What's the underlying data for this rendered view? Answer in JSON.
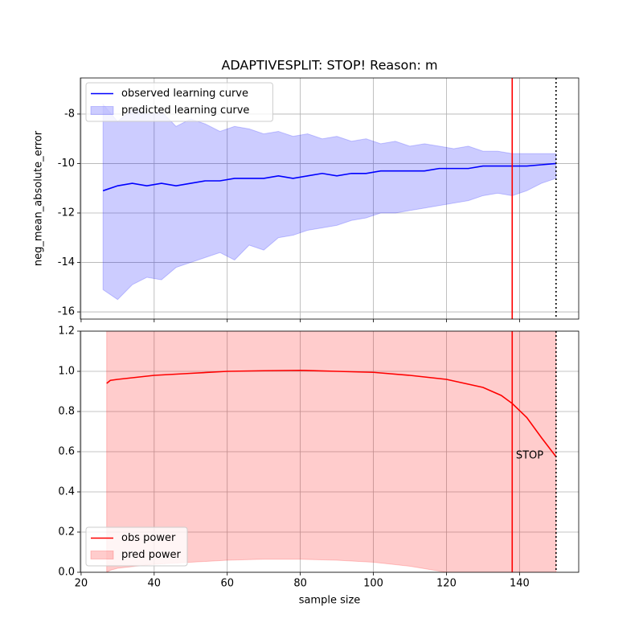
{
  "chart_data": [
    {
      "type": "line",
      "title": "ADAPTIVESPLIT: STOP!  Reason: m",
      "ylabel": "neg_mean_absolute_error",
      "x": [
        26,
        30,
        34,
        38,
        42,
        46,
        50,
        54,
        58,
        62,
        66,
        70,
        74,
        78,
        82,
        86,
        90,
        94,
        98,
        102,
        106,
        110,
        114,
        118,
        122,
        126,
        130,
        134,
        138,
        142,
        146,
        150
      ],
      "series": [
        {
          "name": "observed learning curve",
          "color": "#0000ff",
          "values": [
            -11.1,
            -10.9,
            -10.8,
            -10.9,
            -10.8,
            -10.9,
            -10.8,
            -10.7,
            -10.7,
            -10.6,
            -10.6,
            -10.6,
            -10.5,
            -10.6,
            -10.5,
            -10.4,
            -10.5,
            -10.4,
            -10.4,
            -10.3,
            -10.3,
            -10.3,
            -10.3,
            -10.2,
            -10.2,
            -10.2,
            -10.1,
            -10.1,
            -10.1,
            -10.1,
            -10.05,
            -10.0
          ]
        },
        {
          "name": "predicted learning curve",
          "kind": "band",
          "color": "#0000ff",
          "upper": [
            -7.6,
            -8.3,
            -7.8,
            -8.0,
            -7.9,
            -8.5,
            -8.2,
            -8.4,
            -8.7,
            -8.5,
            -8.6,
            -8.8,
            -8.7,
            -8.9,
            -8.8,
            -9.0,
            -8.9,
            -9.1,
            -9.0,
            -9.2,
            -9.1,
            -9.3,
            -9.2,
            -9.3,
            -9.4,
            -9.3,
            -9.5,
            -9.5,
            -9.6,
            -9.6,
            -9.6,
            -9.6
          ],
          "lower": [
            -15.1,
            -15.5,
            -14.9,
            -14.6,
            -14.7,
            -14.2,
            -14.0,
            -13.8,
            -13.6,
            -13.9,
            -13.3,
            -13.5,
            -13.0,
            -12.9,
            -12.7,
            -12.6,
            -12.5,
            -12.3,
            -12.2,
            -12.0,
            -12.0,
            -11.9,
            -11.8,
            -11.7,
            -11.6,
            -11.5,
            -11.3,
            -11.2,
            -11.3,
            -11.1,
            -10.8,
            -10.6
          ]
        }
      ],
      "vlines": [
        {
          "x": 138,
          "color": "#ff0000",
          "style": "solid"
        },
        {
          "x": 150,
          "color": "#000000",
          "style": "dotted"
        }
      ],
      "xlim": [
        19.8,
        156.2
      ],
      "xticks": [
        20,
        40,
        60,
        80,
        100,
        120,
        140
      ],
      "show_xtick_labels": false,
      "ylim": [
        -16.29,
        -6.54
      ],
      "yticks": [
        -16,
        -14,
        -12,
        -10,
        -8
      ],
      "grid": true,
      "legend": "upper left"
    },
    {
      "type": "line",
      "xlabel": "sample size",
      "x": [
        27,
        28,
        30,
        40,
        50,
        60,
        70,
        80,
        90,
        100,
        110,
        120,
        130,
        135,
        138,
        142,
        146,
        150
      ],
      "series": [
        {
          "name": "obs power",
          "color": "#ff0000",
          "values": [
            0.94,
            0.955,
            0.96,
            0.98,
            0.99,
            1.0,
            1.003,
            1.005,
            1.0,
            0.995,
            0.98,
            0.96,
            0.92,
            0.88,
            0.84,
            0.77,
            0.67,
            0.575
          ]
        },
        {
          "name": "pred power",
          "kind": "band",
          "color": "#ff0000",
          "upper": [
            1.25,
            1.25,
            1.25,
            1.25,
            1.25,
            1.25,
            1.25,
            1.25,
            1.25,
            1.25,
            1.25,
            1.25,
            1.25,
            1.25,
            1.25,
            1.25,
            1.25,
            1.25
          ],
          "lower": [
            0.0,
            0.01,
            0.02,
            0.04,
            0.05,
            0.06,
            0.065,
            0.065,
            0.06,
            0.05,
            0.03,
            0.0,
            -0.03,
            -0.05,
            -0.06,
            -0.08,
            -0.1,
            -0.12
          ]
        }
      ],
      "vlines": [
        {
          "x": 138,
          "color": "#ff0000",
          "style": "solid"
        },
        {
          "x": 150,
          "color": "#000000",
          "style": "dotted"
        }
      ],
      "annotations": [
        {
          "text": "STOP",
          "x": 139,
          "y": 0.58
        }
      ],
      "xlim": [
        19.8,
        156.2
      ],
      "xticks": [
        20,
        40,
        60,
        80,
        100,
        120,
        140
      ],
      "show_xtick_labels": true,
      "ylim": [
        0,
        1.2
      ],
      "yticks": [
        {
          "value": 0,
          "label": "0.0"
        },
        0.2,
        0.4,
        0.6,
        0.8,
        {
          "value": 1,
          "label": "1.0"
        },
        1.2
      ],
      "grid": true,
      "legend": "lower left"
    }
  ]
}
